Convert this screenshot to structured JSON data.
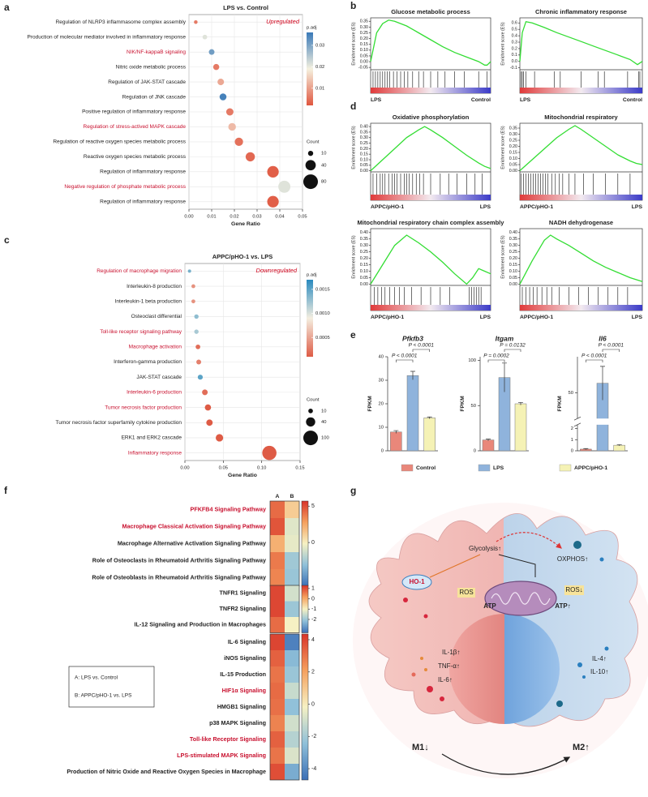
{
  "panel_labels": [
    "a",
    "b",
    "c",
    "d",
    "e",
    "f",
    "g"
  ],
  "chart_data": [
    {
      "type": "dot",
      "title": "LPS vs. Control",
      "annotation": "Upregulated",
      "categories": [
        "Regulation of NLRP3 inflammasome complex assembly",
        "Production of molecular mediator involved in inflammatory response",
        "NIK/NF-kappaB signaling",
        "Nitric oxide metabolic process",
        "Regulation of JAK-STAT cascade",
        "Regulation of JNK cascade",
        "Positive regulation of inflammatory response",
        "Regulation of stress-actived MAPK cascade",
        "Regulation of reactive oxygen species metabolic process",
        "Reactive oxygen species metabolic process",
        "Regulation of inflammatory response",
        "Negative regulation of phosphate metabolic process",
        "Regulation of inflammatory response"
      ],
      "label_colors": [
        "#222222",
        "#222222",
        "#c8102e",
        "#222222",
        "#222222",
        "#222222",
        "#222222",
        "#c8102e",
        "#222222",
        "#222222",
        "#222222",
        "#c8102e",
        "#222222"
      ],
      "values": [
        0.003,
        0.007,
        0.01,
        0.012,
        0.014,
        0.015,
        0.018,
        0.019,
        0.022,
        0.027,
        0.037,
        0.042,
        0.037
      ],
      "sizes": [
        5,
        8,
        12,
        14,
        16,
        18,
        20,
        22,
        26,
        32,
        50,
        55,
        50
      ],
      "color_values": [
        0.006,
        0.021,
        0.031,
        0.006,
        0.011,
        0.035,
        0.006,
        0.013,
        0.005,
        0.004,
        0.003,
        0.021,
        0.003
      ],
      "xlabel": "Gene Ratio",
      "xlim": [
        0,
        0.05
      ],
      "xticks": [
        {
          "value": 0,
          "label": "0.00"
        },
        0.01,
        0.02,
        0.03,
        0.04,
        0.05
      ],
      "color_label": "p.adj",
      "color_lim": [
        0.002,
        0.036
      ],
      "color_ticks": [
        0.01,
        0.02,
        0.03
      ],
      "colormap": [
        "#e0563f",
        "#f5f1df",
        "#3a7ab8"
      ],
      "size_label": "Count",
      "size_ticks": [
        10,
        40,
        80
      ]
    },
    {
      "type": "dot",
      "title": "APPC/pHO-1 vs. LPS",
      "annotation": "Downregulated",
      "categories": [
        "Regulation of macrophage migration",
        "Interleukin-8 production",
        "Interleukin-1 beta production",
        "Osteoclast differential",
        "Toll-like receptor signaling pathway",
        "Macrophage activation",
        "Interferon-gamma production",
        "JAK-STAT cascade",
        "Interleukin-6 production",
        "Tumor necrosis factor production",
        "Tumor necrosis factor superfamily cytokine production",
        "ERK1 and ERK2 cascade",
        "Inflammatory response"
      ],
      "label_colors": [
        "#c8102e",
        "#222222",
        "#222222",
        "#222222",
        "#c8102e",
        "#c8102e",
        "#222222",
        "#222222",
        "#c8102e",
        "#c8102e",
        "#222222",
        "#222222",
        "#c8102e"
      ],
      "values": [
        0.006,
        0.011,
        0.011,
        0.015,
        0.015,
        0.017,
        0.018,
        0.02,
        0.026,
        0.03,
        0.032,
        0.045,
        0.11
      ],
      "sizes": [
        5,
        7,
        7,
        9,
        9,
        10,
        11,
        12,
        15,
        18,
        19,
        26,
        95
      ],
      "color_values": [
        0.0014,
        0.0004,
        0.0004,
        0.0013,
        0.0012,
        0.0002,
        0.0003,
        0.0015,
        0.0002,
        0.0001,
        0.0001,
        0.0001,
        0.0001
      ],
      "xlabel": "Gene Ratio",
      "xlim": [
        0,
        0.15
      ],
      "xticks": [
        {
          "value": 0,
          "label": "0.00"
        },
        0.05,
        {
          "value": 0.1,
          "label": "0.10"
        },
        0.15
      ],
      "color_label": "p.adj",
      "color_lim": [
        0.0001,
        0.0017
      ],
      "color_ticks": [
        0.0005,
        {
          "value": 0.001,
          "label": "0.0010"
        },
        0.0015
      ],
      "colormap": [
        "#de5b45",
        "#f4eee0",
        "#2a8bbf"
      ],
      "size_label": "Count",
      "size_ticks": [
        10,
        40,
        100
      ]
    },
    {
      "type": "gsea",
      "title": "Glucose metabolic process",
      "ylabel": "Enrichment score (ES)",
      "color": "#33dd33",
      "x": [
        0,
        0.05,
        0.1,
        0.15,
        0.2,
        0.3,
        0.4,
        0.5,
        0.6,
        0.7,
        0.8,
        0.9,
        0.95,
        0.97,
        1
      ],
      "values": [
        0,
        0.25,
        0.33,
        0.36,
        0.35,
        0.31,
        0.25,
        0.19,
        0.13,
        0.08,
        0.04,
        0.0,
        -0.03,
        -0.03,
        0
      ],
      "xlim": [
        0,
        1
      ],
      "ylim": [
        -0.07,
        0.38
      ],
      "yticks": [
        -0.05,
        {
          "value": 0,
          "label": "0.00"
        },
        0.05,
        {
          "value": 0.1,
          "label": "0.10"
        },
        0.15,
        {
          "value": 0.2,
          "label": "0.20"
        },
        0.25,
        {
          "value": 0.3,
          "label": "0.30"
        },
        0.35
      ],
      "hits": [
        0.02,
        0.04,
        0.06,
        0.08,
        0.1,
        0.12,
        0.14,
        0.16,
        0.19,
        0.22,
        0.25,
        0.28,
        0.31,
        0.35,
        0.4,
        0.44,
        0.5,
        0.56,
        0.62,
        0.7,
        0.78,
        0.9,
        0.97
      ],
      "left_label": "LPS",
      "right_label": "Control"
    },
    {
      "type": "gsea",
      "title": "Chronic inflammatory response",
      "ylabel": "Enrichment score (ES)",
      "color": "#33dd33",
      "x": [
        0,
        0.02,
        0.05,
        0.1,
        0.2,
        0.3,
        0.4,
        0.5,
        0.6,
        0.7,
        0.8,
        0.9,
        0.96,
        1
      ],
      "values": [
        0,
        0.45,
        0.62,
        0.6,
        0.53,
        0.45,
        0.38,
        0.31,
        0.24,
        0.17,
        0.1,
        0.03,
        -0.05,
        0
      ],
      "xlim": [
        0,
        1
      ],
      "ylim": [
        -0.13,
        0.68
      ],
      "yticks": [
        -0.1,
        {
          "value": 0,
          "label": "0.0"
        },
        0.1,
        0.2,
        0.3,
        0.4,
        0.5,
        0.6
      ],
      "hits": [
        0.01,
        0.02,
        0.03,
        0.05,
        0.12,
        0.28,
        0.33,
        0.5,
        0.64,
        0.69,
        0.88,
        0.97,
        0.98
      ],
      "left_label": "LPS",
      "right_label": "Control"
    },
    {
      "type": "gsea",
      "title": "Oxidative phosphorylation",
      "ylabel": "Enrichment score (ES)",
      "color": "#33dd33",
      "x": [
        0,
        0.1,
        0.2,
        0.3,
        0.4,
        0.45,
        0.5,
        0.6,
        0.7,
        0.8,
        0.9,
        0.95,
        1
      ],
      "values": [
        0,
        0.1,
        0.2,
        0.3,
        0.37,
        0.4,
        0.37,
        0.3,
        0.22,
        0.14,
        0.07,
        0.04,
        0.02
      ],
      "xlim": [
        0,
        1
      ],
      "ylim": [
        -0.01,
        0.43
      ],
      "yticks": [
        {
          "value": 0,
          "label": "0.00"
        },
        0.05,
        {
          "value": 0.1,
          "label": "0.10"
        },
        0.15,
        {
          "value": 0.2,
          "label": "0.20"
        },
        0.25,
        {
          "value": 0.3,
          "label": "0.30"
        },
        0.35,
        {
          "value": 0.4,
          "label": "0.40"
        }
      ],
      "hits": [
        0.02,
        0.05,
        0.08,
        0.1,
        0.12,
        0.15,
        0.18,
        0.2,
        0.22,
        0.25,
        0.28,
        0.3,
        0.32,
        0.35,
        0.38,
        0.41,
        0.44,
        0.5,
        0.58,
        0.65,
        0.72,
        0.8,
        0.87,
        0.93
      ],
      "left_label": "APPC/pHO-1",
      "right_label": "LPS"
    },
    {
      "type": "gsea",
      "title": "Mitochondrial respiratory",
      "ylabel": "Enrichment score (ES)",
      "color": "#33dd33",
      "x": [
        0,
        0.1,
        0.2,
        0.3,
        0.4,
        0.45,
        0.5,
        0.6,
        0.7,
        0.8,
        0.9,
        0.95,
        1
      ],
      "values": [
        0,
        0.09,
        0.18,
        0.27,
        0.34,
        0.37,
        0.34,
        0.27,
        0.2,
        0.13,
        0.08,
        0.06,
        0.05
      ],
      "xlim": [
        0,
        1
      ],
      "ylim": [
        -0.01,
        0.39
      ],
      "yticks": [
        {
          "value": 0,
          "label": "0.00"
        },
        0.05,
        {
          "value": 0.1,
          "label": "0.10"
        },
        0.15,
        {
          "value": 0.2,
          "label": "0.20"
        },
        0.25,
        {
          "value": 0.3,
          "label": "0.30"
        },
        0.35
      ],
      "hits": [
        0.01,
        0.03,
        0.05,
        0.07,
        0.09,
        0.11,
        0.13,
        0.15,
        0.17,
        0.19,
        0.21,
        0.23,
        0.26,
        0.29,
        0.32,
        0.35,
        0.4,
        0.45,
        0.52,
        0.6,
        0.7,
        0.8,
        0.9
      ],
      "left_label": "APPC/pHO-1",
      "right_label": "LPS"
    },
    {
      "type": "gsea",
      "title": "Mitochondrial respiratory chain complex assembly",
      "ylabel": "Enrichment score (ES)",
      "color": "#33dd33",
      "x": [
        0,
        0.1,
        0.2,
        0.3,
        0.4,
        0.5,
        0.6,
        0.7,
        0.8,
        0.85,
        0.9,
        0.95,
        1
      ],
      "values": [
        0,
        0.15,
        0.3,
        0.38,
        0.32,
        0.25,
        0.17,
        0.08,
        0.0,
        0.05,
        0.12,
        0.1,
        0.08
      ],
      "xlim": [
        0,
        1
      ],
      "ylim": [
        -0.01,
        0.43
      ],
      "yticks": [
        {
          "value": 0,
          "label": "0.00"
        },
        0.05,
        {
          "value": 0.1,
          "label": "0.10"
        },
        0.15,
        {
          "value": 0.2,
          "label": "0.20"
        },
        0.25,
        {
          "value": 0.3,
          "label": "0.30"
        },
        0.35,
        {
          "value": 0.4,
          "label": "0.40"
        }
      ],
      "hits": [
        0.03,
        0.06,
        0.09,
        0.12,
        0.16,
        0.2,
        0.24,
        0.28,
        0.34,
        0.42,
        0.5,
        0.58,
        0.66,
        0.82,
        0.84,
        0.86,
        0.88,
        0.9,
        0.92
      ],
      "left_label": "APPC/pHO-1",
      "right_label": "LPS"
    },
    {
      "type": "gsea",
      "title": "NADH dehydrogenase",
      "ylabel": "Enrichment score (ES)",
      "color": "#33dd33",
      "x": [
        0,
        0.1,
        0.2,
        0.25,
        0.3,
        0.4,
        0.5,
        0.6,
        0.7,
        0.8,
        0.9,
        1
      ],
      "values": [
        0,
        0.18,
        0.34,
        0.38,
        0.35,
        0.3,
        0.24,
        0.18,
        0.13,
        0.09,
        0.05,
        0.02
      ],
      "xlim": [
        0,
        1
      ],
      "ylim": [
        -0.01,
        0.43
      ],
      "yticks": [
        {
          "value": 0,
          "label": "0.00"
        },
        0.05,
        {
          "value": 0.1,
          "label": "0.10"
        },
        0.15,
        {
          "value": 0.2,
          "label": "0.20"
        },
        0.25,
        {
          "value": 0.3,
          "label": "0.30"
        },
        0.35,
        {
          "value": 0.4,
          "label": "0.40"
        }
      ],
      "hits": [
        0.02,
        0.05,
        0.08,
        0.11,
        0.14,
        0.18,
        0.22,
        0.26,
        0.32,
        0.4,
        0.48,
        0.56,
        0.64,
        0.72,
        0.8,
        0.88
      ],
      "left_label": "APPC/pHO-1",
      "right_label": "LPS"
    },
    {
      "type": "bar",
      "title": "Pfkfb3",
      "ylabel": "FPKM",
      "values": [
        8,
        32,
        14
      ],
      "errors": [
        0.6,
        1.8,
        0.4
      ],
      "ylim": [
        0,
        40
      ],
      "yticks": [
        0,
        10,
        20,
        30,
        40
      ],
      "comparisons": [
        {
          "pair": [
            0,
            1
          ],
          "label": "P < 0.0001"
        },
        {
          "pair": [
            1,
            2
          ],
          "label": "P < 0.0001"
        }
      ]
    },
    {
      "type": "bar",
      "title": "Itgam",
      "ylabel": "FPKM",
      "values": [
        12,
        81,
        52
      ],
      "errors": [
        1,
        16,
        1.5
      ],
      "ylim": [
        0,
        104
      ],
      "yticks": [
        0,
        50,
        100
      ],
      "comparisons": [
        {
          "pair": [
            0,
            1
          ],
          "label": "P = 0.0002"
        },
        {
          "pair": [
            1,
            2
          ],
          "label": "P = 0.0132"
        }
      ]
    },
    {
      "type": "bar",
      "title": "Il6",
      "ylabel": "FPKM",
      "values": [
        0.15,
        54,
        0.5
      ],
      "errors": [
        0.05,
        7,
        0.05
      ],
      "ylim": [
        0,
        65
      ],
      "ybreak": [
        2.2,
        40
      ],
      "yticks": [
        0,
        1,
        2,
        50
      ],
      "comparisons": [
        {
          "pair": [
            0,
            1
          ],
          "label": "P < 0.0001"
        },
        {
          "pair": [
            1,
            2
          ],
          "label": "P < 0.0001"
        }
      ]
    },
    {
      "type": "heatmap",
      "columns": [
        "A",
        "B"
      ],
      "colormap": [
        "#3b6fb6",
        "#8fc0d9",
        "#f6f1c3",
        "#f5a05e",
        "#d8342a"
      ],
      "legend": [
        "A: LPS vs. Control",
        "B: APPC/pHO-1 vs. LPS"
      ],
      "blocks": [
        {
          "rows": [
            "PFKFB4 Signaling  Pathway",
            "Macrophage Classical Activation Signaling  Pathway",
            "Macrophage Alternative Activation Signaling  Pathway",
            "Role of Osteoclasts in Rheumatoid Arthritis Signaling  Pathway",
            "Role of Osteoblasts in Rheumatoid Arthritis Signaling  Pathway"
          ],
          "label_colors": [
            "#c8102e",
            "#c8102e",
            "#222222",
            "#222222",
            "#222222"
          ],
          "values": [
            [
              4.2,
              1.2
            ],
            [
              4.8,
              -0.8
            ],
            [
              2.2,
              -0.6
            ],
            [
              3.8,
              -2.6
            ],
            [
              3.5,
              -2.8
            ]
          ],
          "color_lim": [
            -6,
            5.7
          ],
          "color_ticks": [
            5,
            0
          ]
        },
        {
          "rows": [
            "TNFR1 Signaling",
            "TNFR2 Signaling",
            "IL-12 Signaling and Production in Macrophages"
          ],
          "label_colors": [
            "#222222",
            "#222222",
            "#222222"
          ],
          "values": [
            [
              1.1,
              -1.4
            ],
            [
              1.1,
              -2
            ],
            [
              0.7,
              -1
            ]
          ],
          "color_lim": [
            -3.3,
            1.3
          ],
          "color_ticks": [
            1,
            0,
            -1,
            -2
          ]
        },
        {
          "rows": [
            "IL-6 Signaling",
            "iNOS Signaling",
            "IL-15 Production",
            "HIF1α Signaling",
            "HMGB1 Signaling",
            "p38 MAPK Signaling",
            "Toll-like Receptor Signaling",
            "LPS-stimulated MAPK Signaling",
            "Production of Nitric Oxide and Reactive Oxygen Species in Macrophage"
          ],
          "label_colors": [
            "#222222",
            "#222222",
            "#222222",
            "#c8102e",
            "#222222",
            "#222222",
            "#c8102e",
            "#c8102e",
            "#222222"
          ],
          "values": [
            [
              4,
              -4.2
            ],
            [
              3.4,
              -2.6
            ],
            [
              3,
              -2.2
            ],
            [
              3.2,
              -1.2
            ],
            [
              3.1,
              -2.4
            ],
            [
              2.7,
              -1
            ],
            [
              3.4,
              -1.6
            ],
            [
              3,
              -0.8
            ],
            [
              3.8,
              -3
            ]
          ],
          "color_lim": [
            -4.7,
            4.35
          ],
          "color_ticks": [
            4,
            2,
            0,
            -2,
            -4
          ]
        }
      ]
    }
  ],
  "bar_legend": {
    "names": [
      "Control",
      "LPS",
      "APPC/pHO-1"
    ],
    "colors": [
      "#e9877a",
      "#8fb3dc",
      "#f5f2b5"
    ]
  },
  "diagram": {
    "glycolysis": "Glycolysis↑",
    "oxphos": "OXPHOS↑",
    "ho1": "HO-1",
    "ros_m1": "ROS",
    "atp_m1": "ATP",
    "ros_m2": "ROS↓",
    "atp_m2": "ATP↑",
    "il1b": "IL-1β↑",
    "tnfa": "TNF-α↑",
    "il6": "IL-6↑",
    "il4": "IL-4↑",
    "il10": "IL-10↑",
    "m1": "M1↓",
    "m2": "M2↑"
  }
}
